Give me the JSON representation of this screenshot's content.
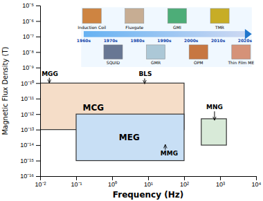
{
  "chart_data": {
    "type": "region",
    "xlabel": "Frequency (Hz)",
    "ylabel": "Magnetic Flux Density (T)",
    "log": true,
    "xlim": [
      0.01,
      10000
    ],
    "ylim": [
      1e-16,
      1e-05
    ],
    "xticks": [
      {
        "value": 0.01,
        "label": "10⁻²"
      },
      {
        "value": 0.1,
        "label": "10⁻¹"
      },
      {
        "value": 1,
        "label": "10⁰"
      },
      {
        "value": 10,
        "label": "10¹"
      },
      {
        "value": 100,
        "label": "10²"
      },
      {
        "value": 1000,
        "label": "10³"
      },
      {
        "value": 10000,
        "label": "10⁴"
      }
    ],
    "yticks": [
      {
        "value": 1e-16,
        "label": "10⁻¹⁶"
      },
      {
        "value": 1e-15,
        "label": "10⁻¹⁵"
      },
      {
        "value": 1e-14,
        "label": "10⁻¹⁴"
      },
      {
        "value": 1e-13,
        "label": "10⁻¹³"
      },
      {
        "value": 1e-12,
        "label": "10⁻¹²"
      },
      {
        "value": 1e-11,
        "label": "10⁻¹¹"
      },
      {
        "value": 1e-10,
        "label": "10⁻¹⁰"
      },
      {
        "value": 1e-09,
        "label": "10⁻⁹"
      },
      {
        "value": 1e-08,
        "label": "10⁻⁸"
      },
      {
        "value": 1e-07,
        "label": "10⁻⁷"
      },
      {
        "value": 1e-06,
        "label": "10⁻⁶"
      },
      {
        "value": 1e-05,
        "label": "10⁻⁵"
      }
    ],
    "background_color": "#ffffff",
    "edge_color": "#333333",
    "regions": [
      {
        "x": [
          0.01,
          100
        ],
        "y": [
          1e-13,
          1e-10
        ],
        "color": "#f5ddc8"
      },
      {
        "x": [
          0.1,
          100
        ],
        "y": [
          1e-15,
          1e-12
        ],
        "color": "#c8dff5"
      },
      {
        "x": [
          300,
          1500
        ],
        "y": [
          1e-14,
          5e-13
        ],
        "color": "#d8ead8"
      }
    ],
    "annotations": [
      {
        "text": "MCG",
        "x": 0.3,
        "y": 2.5e-12
      },
      {
        "text": "MEG",
        "x": 3.0,
        "y": 3e-14
      },
      {
        "text": "MGG",
        "x": 0.011,
        "y": 3e-10,
        "arrow_from": [
          0.018,
          2.2e-10
        ],
        "arrow_to": [
          0.018,
          1e-10
        ]
      },
      {
        "text": "BLS",
        "x": 5.5,
        "y": 2.8e-10,
        "arrow_from": [
          8,
          2e-10
        ],
        "arrow_to": [
          8,
          9e-11
        ]
      },
      {
        "text": "MMG",
        "x": 22,
        "y": 4.5e-15,
        "arrow_from": [
          30,
          5e-15
        ],
        "arrow_to": [
          30,
          1.1e-14
        ]
      },
      {
        "text": "MNG",
        "x": 700,
        "y": 2e-12,
        "arrow_from": [
          700,
          1.5e-12
        ],
        "arrow_to": [
          700,
          4e-13
        ]
      }
    ],
    "inset": {
      "decades": [
        "1960s",
        "1970s",
        "1980s",
        "1990s",
        "2000s",
        "2010s",
        "2020s"
      ],
      "top": [
        {
          "label": "Induction Coil",
          "color": "#c87020"
        },
        {
          "label": "Fluxgate",
          "color": "#c0a080"
        },
        {
          "label": "GMI",
          "color": "#30a060"
        },
        {
          "label": "TMR",
          "color": "#c0a000"
        }
      ],
      "bottom": [
        {
          "label": "SQUID",
          "color": "#506080"
        },
        {
          "label": "GMR",
          "color": "#a0c0d0"
        },
        {
          "label": "OPM",
          "color": "#c06020"
        },
        {
          "label": "Thin Film ME",
          "color": "#d08060"
        }
      ]
    }
  }
}
